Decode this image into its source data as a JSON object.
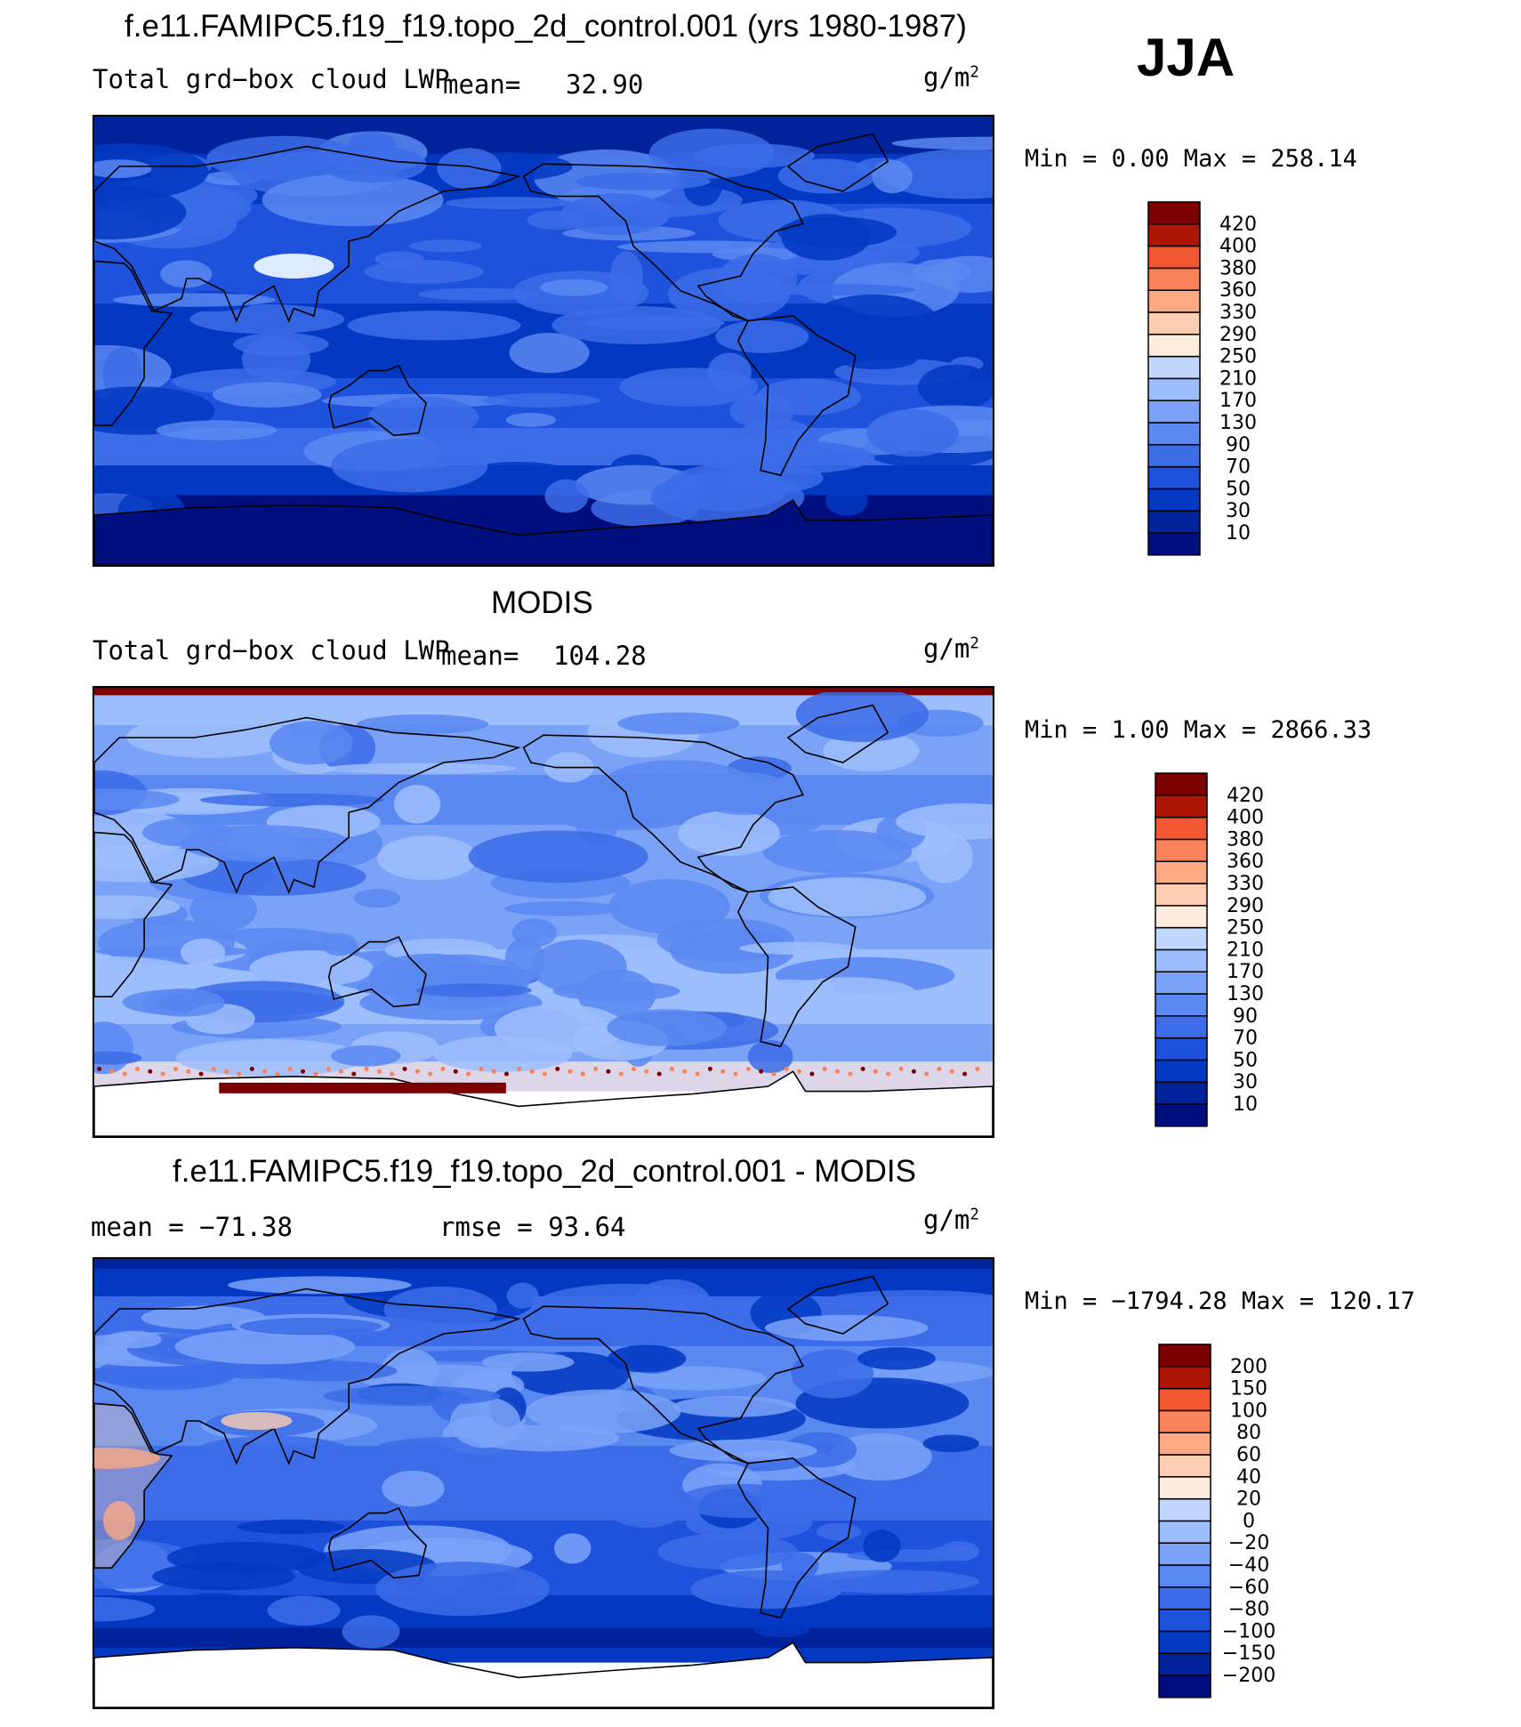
{
  "season": "JJA",
  "colors": {
    "palette": [
      "#000e7e",
      "#00239b",
      "#0238c2",
      "#1f52dc",
      "#3c6ce8",
      "#5a88f1",
      "#7aa3f8",
      "#9dbefc",
      "#c0d6fd",
      "#dcebfd",
      "#fbecdd",
      "#fccdb0",
      "#fba983",
      "#f8825a",
      "#f15831",
      "#d4340f",
      "#ad1504",
      "#7c0000"
    ]
  },
  "panels": [
    {
      "title": "f.e11.FAMIPC5.f19_f19.topo_2d_control.001 (yrs 1980-1987)",
      "left_label": "Total grd−box cloud LWP",
      "mean_label": "mean=",
      "mean_value": "32.90",
      "units": "g/m",
      "units_exp": "2",
      "min_max": "Min =    0.00 Max = 258.14",
      "colorbar_labels": [
        "420",
        "400",
        "380",
        "360",
        "330",
        "290",
        "250",
        "210",
        "170",
        "130",
        "90",
        "70",
        "50",
        "30",
        "10"
      ],
      "field_style": "model"
    },
    {
      "title": "MODIS",
      "left_label": "Total grd−box cloud LWP",
      "mean_label": "mean=",
      "mean_value": "104.28",
      "units": "g/m",
      "units_exp": "2",
      "min_max": "Min =    1.00 Max = 2866.33",
      "colorbar_labels": [
        "420",
        "400",
        "380",
        "360",
        "330",
        "290",
        "250",
        "210",
        "170",
        "130",
        "90",
        "70",
        "50",
        "30",
        "10"
      ],
      "field_style": "obs"
    },
    {
      "title": "f.e11.FAMIPC5.f19_f19.topo_2d_control.001 - MODIS",
      "left_label": "mean = −71.38",
      "rmse_label": "rmse =   93.64",
      "units": "g/m",
      "units_exp": "2",
      "min_max": "Min = −1794.28 Max = 120.17",
      "colorbar_labels": [
        "200",
        "150",
        "100",
        "80",
        "60",
        "40",
        "20",
        "0",
        "−20",
        "−40",
        "−60",
        "−80",
        "−100",
        "−150",
        "−200"
      ],
      "field_style": "diff"
    }
  ],
  "chart_data": [
    {
      "type": "heatmap",
      "title": "f.e11.FAMIPC5.f19_f19.topo_2d_control.001 (yrs 1980-1987)",
      "subtitle": "Total grd−box cloud LWP",
      "units": "g/m2",
      "mean": 32.9,
      "min": 0.0,
      "max": 258.14,
      "levels": [
        10,
        30,
        50,
        70,
        90,
        130,
        170,
        210,
        250,
        290,
        330,
        360,
        380,
        400,
        420
      ]
    },
    {
      "type": "heatmap",
      "title": "MODIS",
      "subtitle": "Total grd−box cloud LWP",
      "units": "g/m2",
      "mean": 104.28,
      "min": 1.0,
      "max": 2866.33,
      "levels": [
        10,
        30,
        50,
        70,
        90,
        130,
        170,
        210,
        250,
        290,
        330,
        360,
        380,
        400,
        420
      ]
    },
    {
      "type": "heatmap",
      "title": "f.e11.FAMIPC5.f19_f19.topo_2d_control.001 - MODIS",
      "units": "g/m2",
      "mean": -71.38,
      "rmse": 93.64,
      "min": -1794.28,
      "max": 120.17,
      "levels": [
        -200,
        -150,
        -100,
        -80,
        -60,
        -40,
        -20,
        0,
        20,
        40,
        60,
        80,
        100,
        150,
        200
      ]
    }
  ]
}
